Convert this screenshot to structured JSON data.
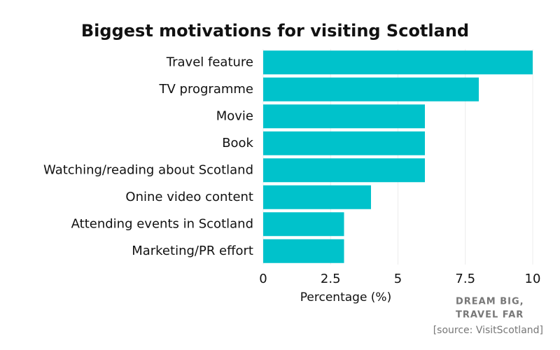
{
  "chart_data": {
    "type": "barh",
    "title": "Biggest motivations for visiting Scotland",
    "categories": [
      "Travel feature",
      "TV programme",
      "Movie",
      "Book",
      "Watching/reading about Scotland",
      "Onine video content",
      "Attending events in Scotland",
      "Marketing/PR effort"
    ],
    "values": [
      10,
      8,
      6,
      6,
      6,
      4,
      3,
      3
    ],
    "color": "#00c2cb",
    "xlim": [
      0,
      10
    ],
    "xticks": [
      0,
      2.5,
      5,
      7.5,
      10
    ],
    "grid": true,
    "xlabel": "Percentage (%)",
    "brand": [
      "DREAM BIG,",
      "TRAVEL FAR"
    ],
    "source": "[source: VisitScotland]"
  }
}
